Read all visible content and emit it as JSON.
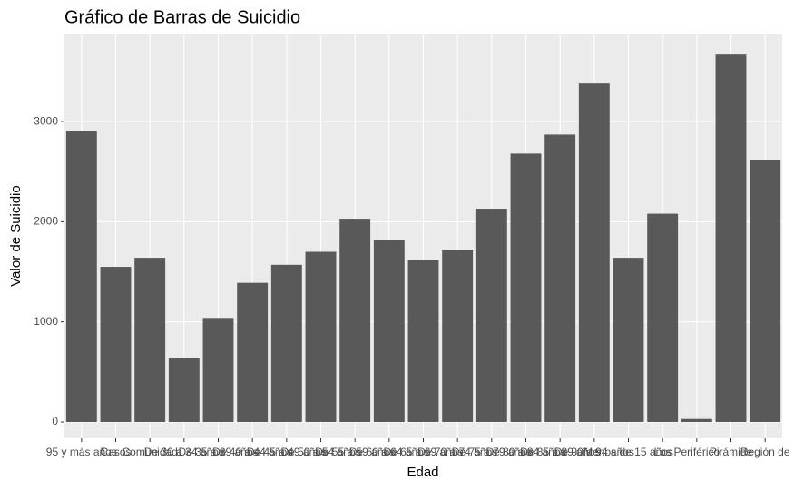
{
  "chart_data": {
    "type": "bar",
    "title": "Gráfico de Barras de Suicidio",
    "x_label": "Edad",
    "y_label": "Valor de Suicidio",
    "categories": [
      "95 y más años",
      "Casos",
      "Comunidad",
      "De 30 a 34 años",
      "De 35 a 39 años",
      "De 40 a 44 años",
      "De 45 a 49 años",
      "De 50 a 54 años",
      "De 55 a 59 años",
      "De 60 a 64 años",
      "De 65 a 69 años",
      "De 70 a 74 años",
      "De 75 a 79 años",
      "De 80 a 84 años",
      "De 85 a 89 años",
      "De 90 a 94 años",
      "Menos de 15 años",
      "Los",
      "Periférico",
      "Pirámide",
      "Región de"
    ],
    "values": [
      2910,
      1550,
      1640,
      640,
      1040,
      1390,
      1570,
      1700,
      2030,
      1820,
      1620,
      1720,
      2130,
      2680,
      2870,
      3380,
      1640,
      2080,
      30,
      3670,
      2620
    ],
    "color": "#595959",
    "ylim": [
      -163,
      3871
    ],
    "yticks": [
      0,
      1000,
      2000,
      3000
    ],
    "grid": true
  }
}
